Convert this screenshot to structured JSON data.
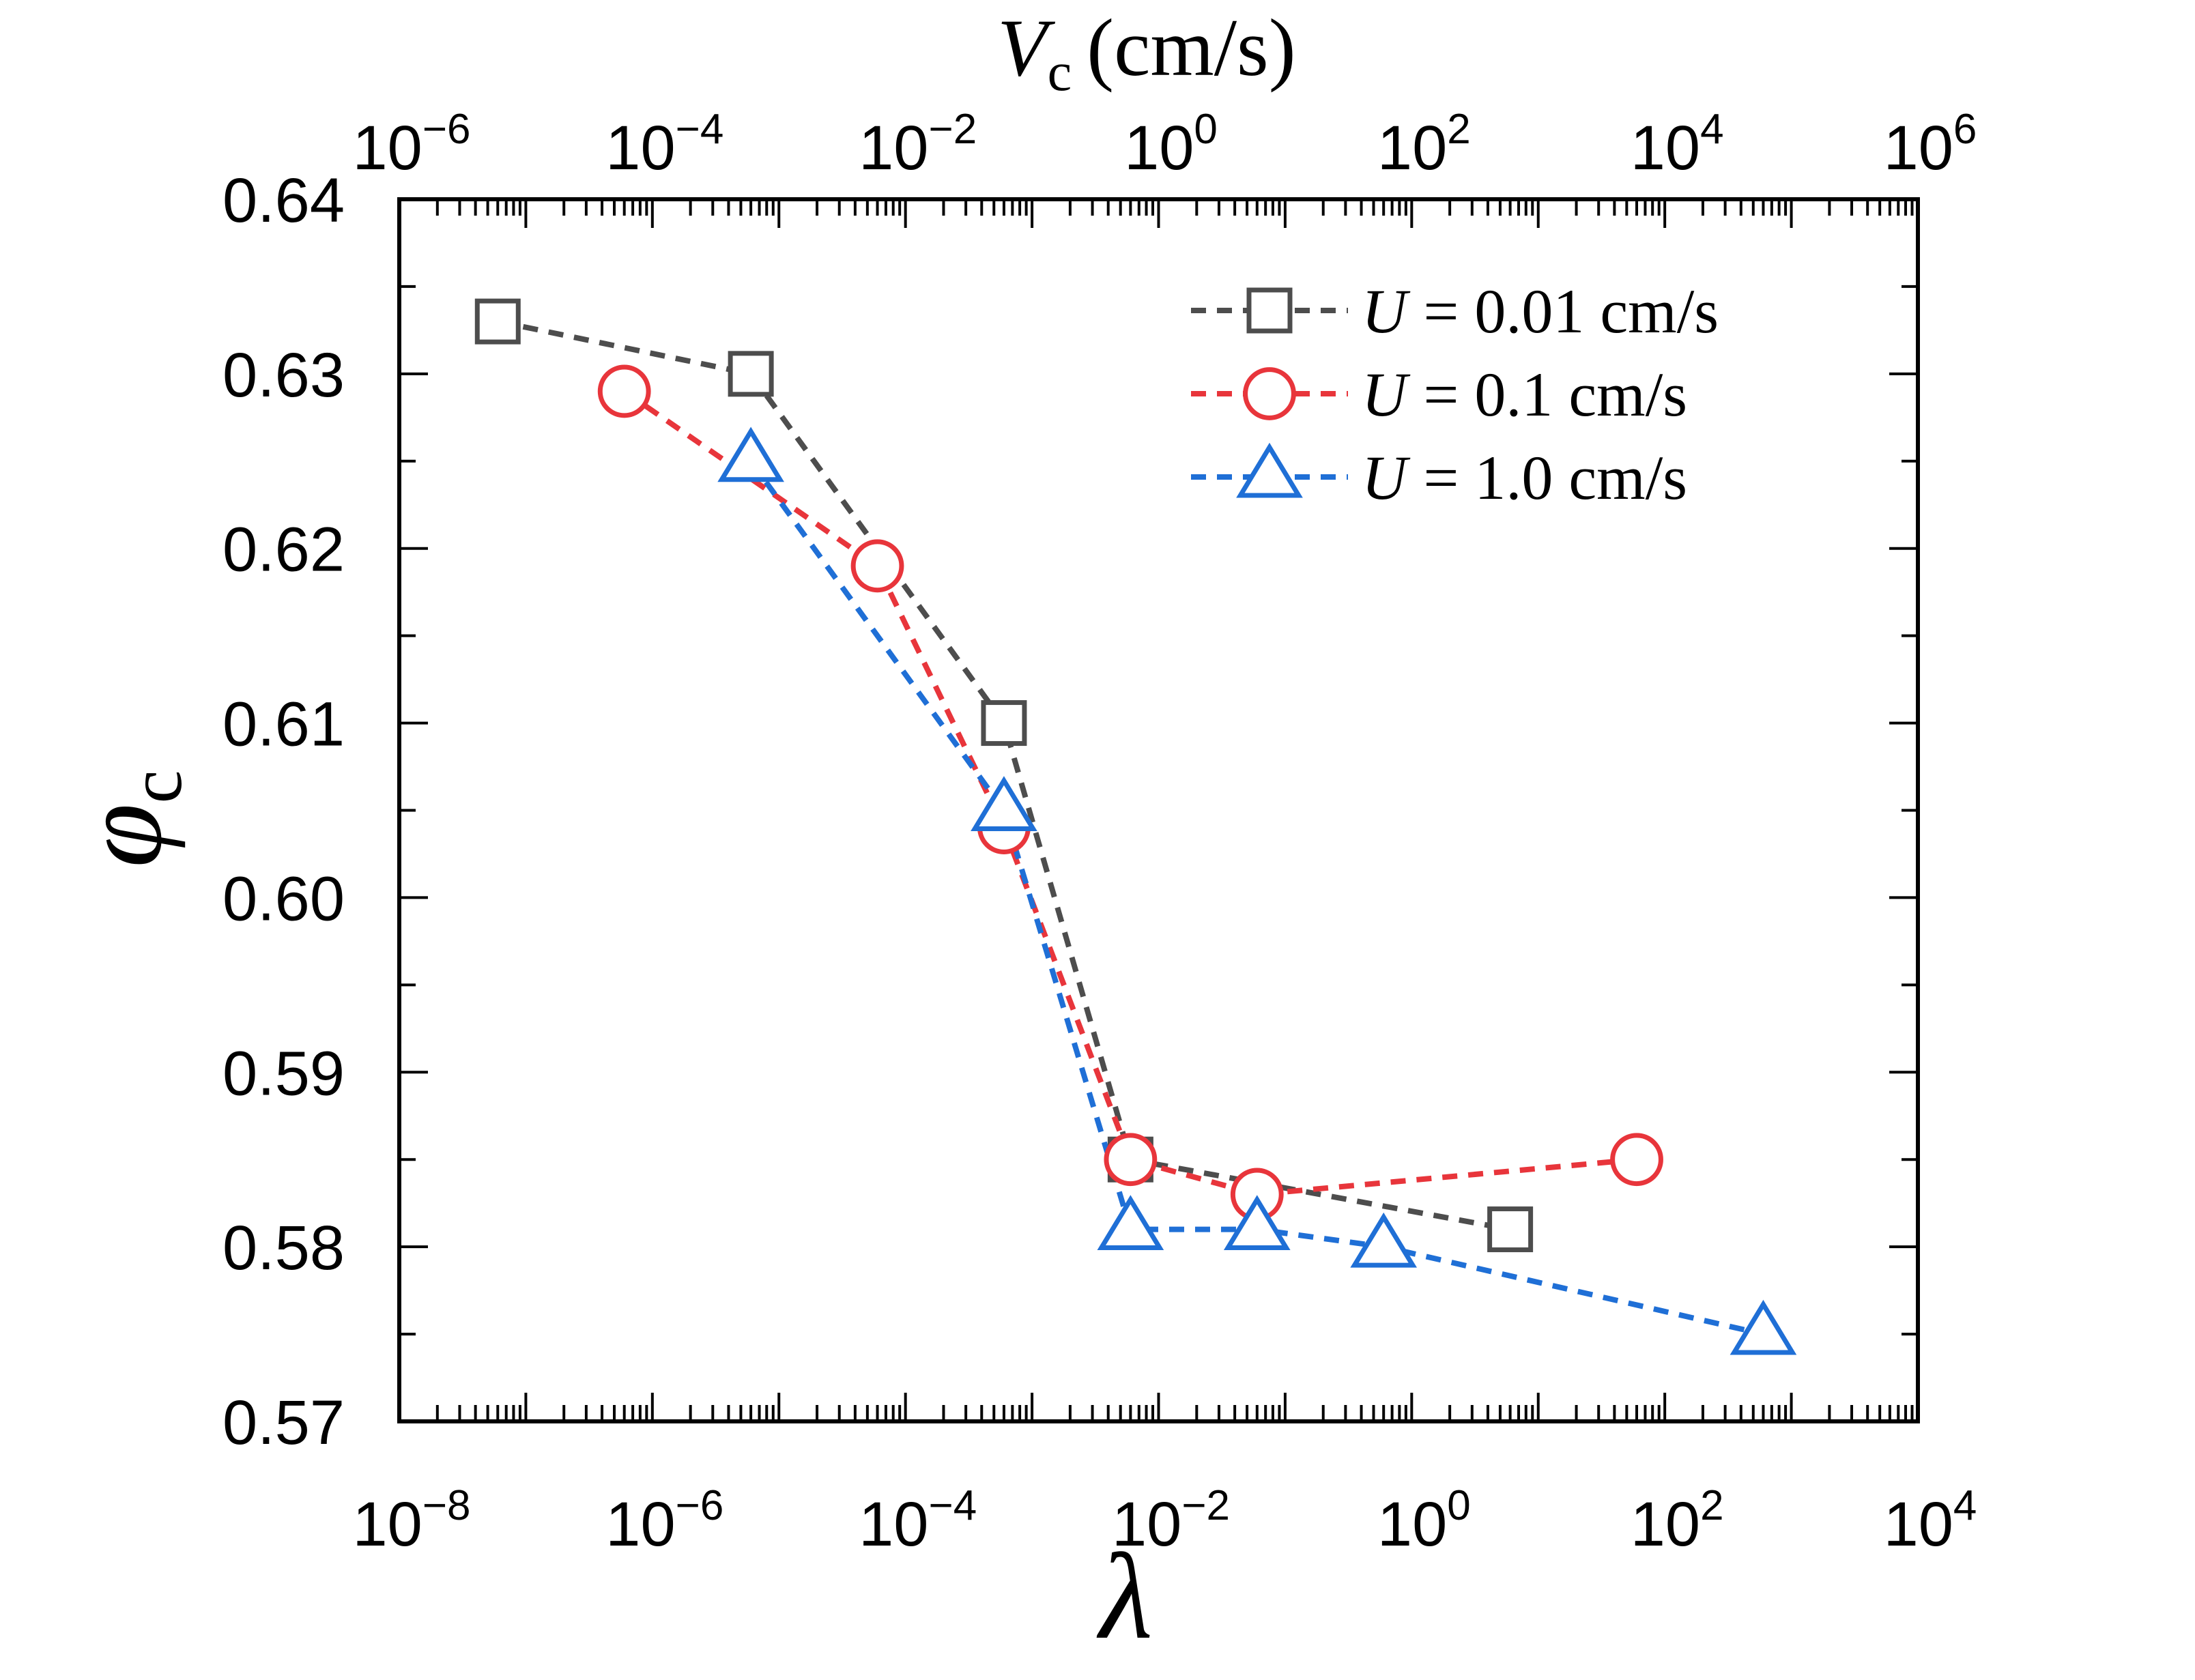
{
  "chart_data": {
    "type": "scatter",
    "title": "",
    "xlabel": "λ",
    "ylabel": "φ",
    "ylabel_sub": "c",
    "x2label": "V",
    "x2label_sub": "c",
    "x2label_unit": "(cm/s)",
    "xscale": "log",
    "xlim_exp": [
      -8,
      4
    ],
    "x2lim_exp": [
      -6,
      6
    ],
    "ylim": [
      0.57,
      0.64
    ],
    "x_ticks": [
      {
        "exp": -8,
        "base": "10",
        "sup": "−8"
      },
      {
        "exp": -6,
        "base": "10",
        "sup": "−6"
      },
      {
        "exp": -4,
        "base": "10",
        "sup": "−4"
      },
      {
        "exp": -2,
        "base": "10",
        "sup": "−2"
      },
      {
        "exp": 0,
        "base": "10",
        "sup": "0"
      },
      {
        "exp": 2,
        "base": "10",
        "sup": "2"
      },
      {
        "exp": 4,
        "base": "10",
        "sup": "4"
      }
    ],
    "x2_ticks": [
      {
        "exp": -6,
        "base": "10",
        "sup": "−6"
      },
      {
        "exp": -4,
        "base": "10",
        "sup": "−4"
      },
      {
        "exp": -2,
        "base": "10",
        "sup": "−2"
      },
      {
        "exp": 0,
        "base": "10",
        "sup": "0"
      },
      {
        "exp": 2,
        "base": "10",
        "sup": "2"
      },
      {
        "exp": 4,
        "base": "10",
        "sup": "4"
      },
      {
        "exp": 6,
        "base": "10",
        "sup": "6"
      }
    ],
    "y_ticks": [
      {
        "value": 0.57,
        "label": "0.57"
      },
      {
        "value": 0.58,
        "label": "0.58"
      },
      {
        "value": 0.59,
        "label": "0.59"
      },
      {
        "value": 0.6,
        "label": "0.60"
      },
      {
        "value": 0.61,
        "label": "0.61"
      },
      {
        "value": 0.62,
        "label": "0.62"
      },
      {
        "value": 0.63,
        "label": "0.63"
      },
      {
        "value": 0.64,
        "label": "0.64"
      }
    ],
    "legend_position": "top-right",
    "series": [
      {
        "name": "U = 0.01 cm/s",
        "legend_var": "U",
        "legend_value": "= 0.01 cm/s",
        "color": "#4d4d4d",
        "marker": "square",
        "points": [
          {
            "x": 6e-08,
            "y": 0.633
          },
          {
            "x": 6e-06,
            "y": 0.63
          },
          {
            "x": 0.0006,
            "y": 0.61
          },
          {
            "x": 0.006,
            "y": 0.585
          },
          {
            "x": 6,
            "y": 0.581
          }
        ]
      },
      {
        "name": "U = 0.1 cm/s",
        "legend_var": "U",
        "legend_value": "= 0.1 cm/s",
        "color": "#e8353b",
        "marker": "circle",
        "points": [
          {
            "x": 6e-07,
            "y": 0.629
          },
          {
            "x": 6e-05,
            "y": 0.619
          },
          {
            "x": 0.0006,
            "y": 0.604
          },
          {
            "x": 0.006,
            "y": 0.585
          },
          {
            "x": 0.06,
            "y": 0.583
          },
          {
            "x": 60,
            "y": 0.585
          }
        ]
      },
      {
        "name": "U = 1.0 cm/s",
        "legend_var": "U",
        "legend_value": "= 1.0 cm/s",
        "color": "#1f6fd6",
        "marker": "triangle",
        "points": [
          {
            "x": 6e-06,
            "y": 0.625
          },
          {
            "x": 0.0006,
            "y": 0.605
          },
          {
            "x": 0.006,
            "y": 0.581
          },
          {
            "x": 0.06,
            "y": 0.581
          },
          {
            "x": 0.6,
            "y": 0.58
          },
          {
            "x": 600,
            "y": 0.575
          }
        ]
      }
    ]
  }
}
